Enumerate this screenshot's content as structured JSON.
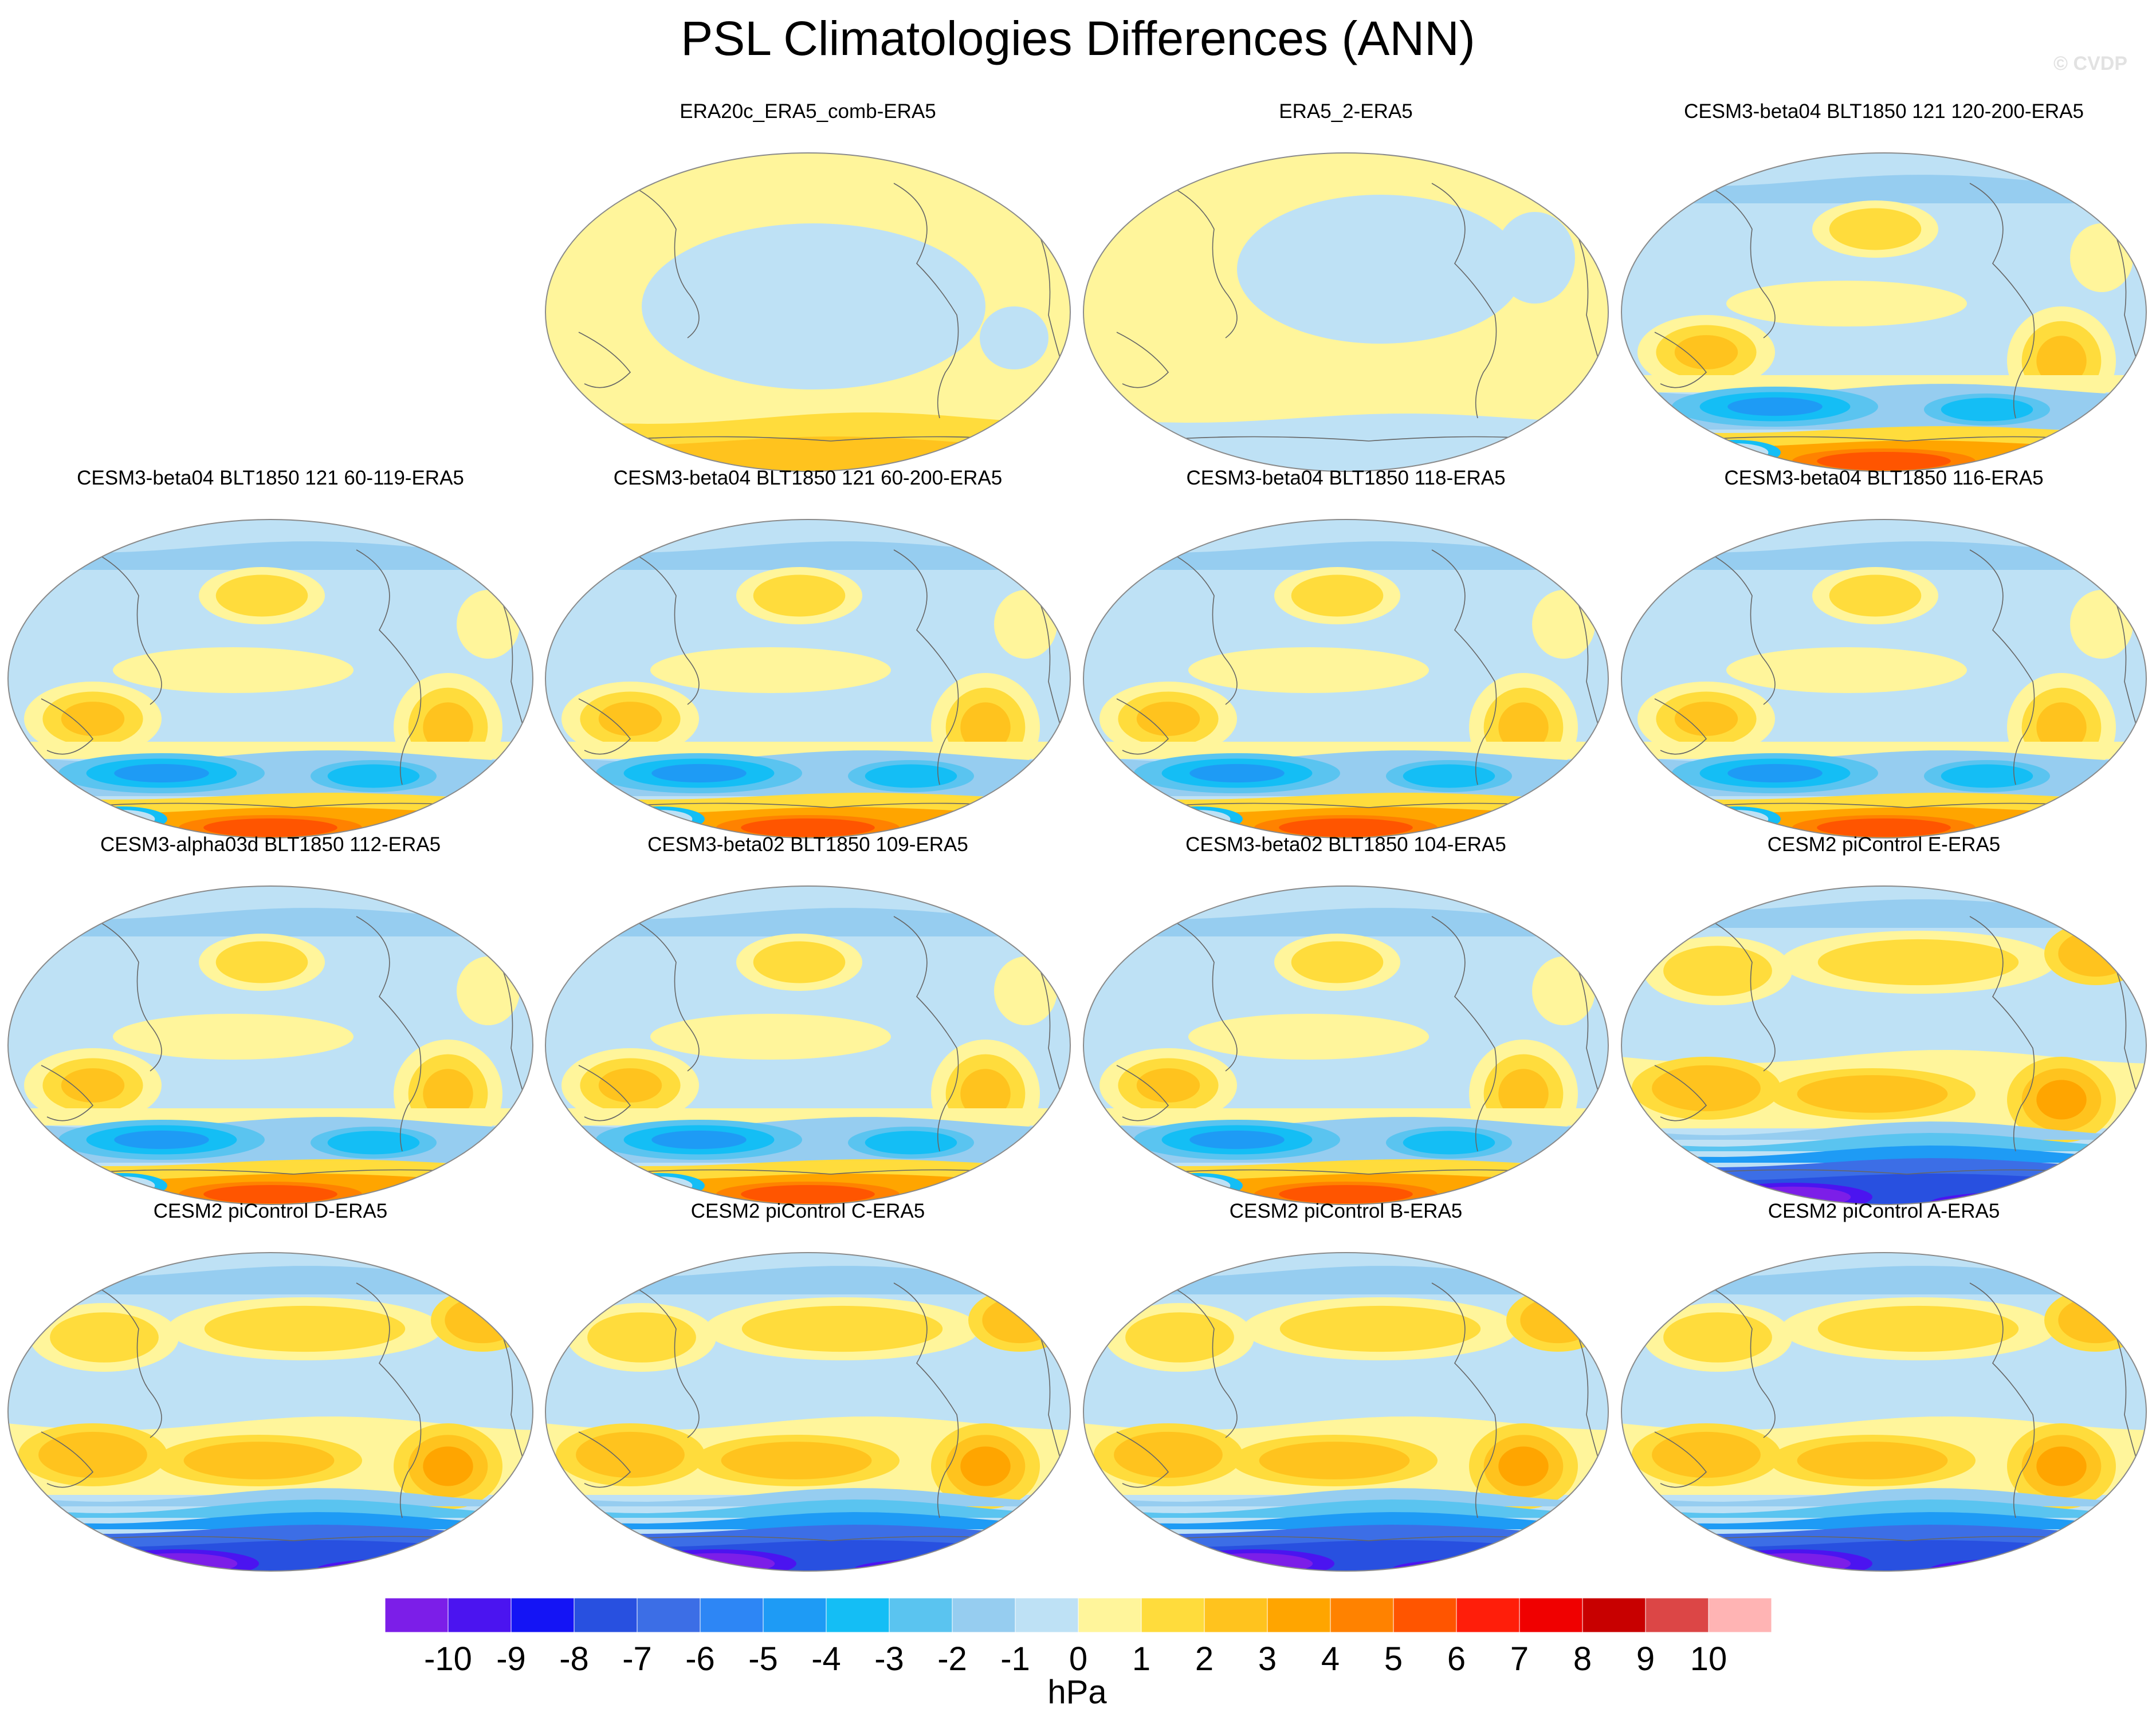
{
  "figure": {
    "title": "PSL Climatologies Differences (ANN)",
    "watermark": "© CVDP"
  },
  "panels": [
    {
      "label": "ERA20c_ERA5_comb-ERA5",
      "pattern": "era20c"
    },
    {
      "label": "ERA5_2-ERA5",
      "pattern": "era5_2"
    },
    {
      "label": "CESM3-beta04 BLT1850 121 120-200-ERA5",
      "pattern": "cesm3"
    },
    {
      "label": "CESM3-beta04 BLT1850 121 60-119-ERA5",
      "pattern": "cesm3"
    },
    {
      "label": "CESM3-beta04 BLT1850 121 60-200-ERA5",
      "pattern": "cesm3"
    },
    {
      "label": "CESM3-beta04 BLT1850 118-ERA5",
      "pattern": "cesm3"
    },
    {
      "label": "CESM3-beta04 BLT1850 116-ERA5",
      "pattern": "cesm3"
    },
    {
      "label": "CESM3-alpha03d BLT1850 112-ERA5",
      "pattern": "cesm3"
    },
    {
      "label": "CESM3-beta02 BLT1850 109-ERA5",
      "pattern": "cesm3"
    },
    {
      "label": "CESM3-beta02 BLT1850 104-ERA5",
      "pattern": "cesm3"
    },
    {
      "label": "CESM2 piControl E-ERA5",
      "pattern": "cesm2"
    },
    {
      "label": "CESM2 piControl D-ERA5",
      "pattern": "cesm2"
    },
    {
      "label": "CESM2 piControl C-ERA5",
      "pattern": "cesm2"
    },
    {
      "label": "CESM2 piControl B-ERA5",
      "pattern": "cesm2"
    },
    {
      "label": "CESM2 piControl A-ERA5",
      "pattern": "cesm2"
    }
  ],
  "colorbar": {
    "units": "hPa",
    "tick_labels": [
      "-10",
      "-9",
      "-8",
      "-7",
      "-6",
      "-5",
      "-4",
      "-3",
      "-2",
      "-1",
      "0",
      "1",
      "2",
      "3",
      "4",
      "5",
      "6",
      "7",
      "8",
      "9",
      "10"
    ],
    "colors": [
      "#7c1ee8",
      "#4b14f0",
      "#1414f5",
      "#2850e0",
      "#3c6ee6",
      "#2d86f5",
      "#1e9bf5",
      "#14bef5",
      "#5ac4f0",
      "#96cdf0",
      "#bee1f5",
      "#fff59b",
      "#ffdc3c",
      "#ffc31e",
      "#ffa500",
      "#ff8200",
      "#ff5500",
      "#ff1e0a",
      "#f00000",
      "#c80000",
      "#dc4646",
      "#ffb4b4"
    ]
  }
}
